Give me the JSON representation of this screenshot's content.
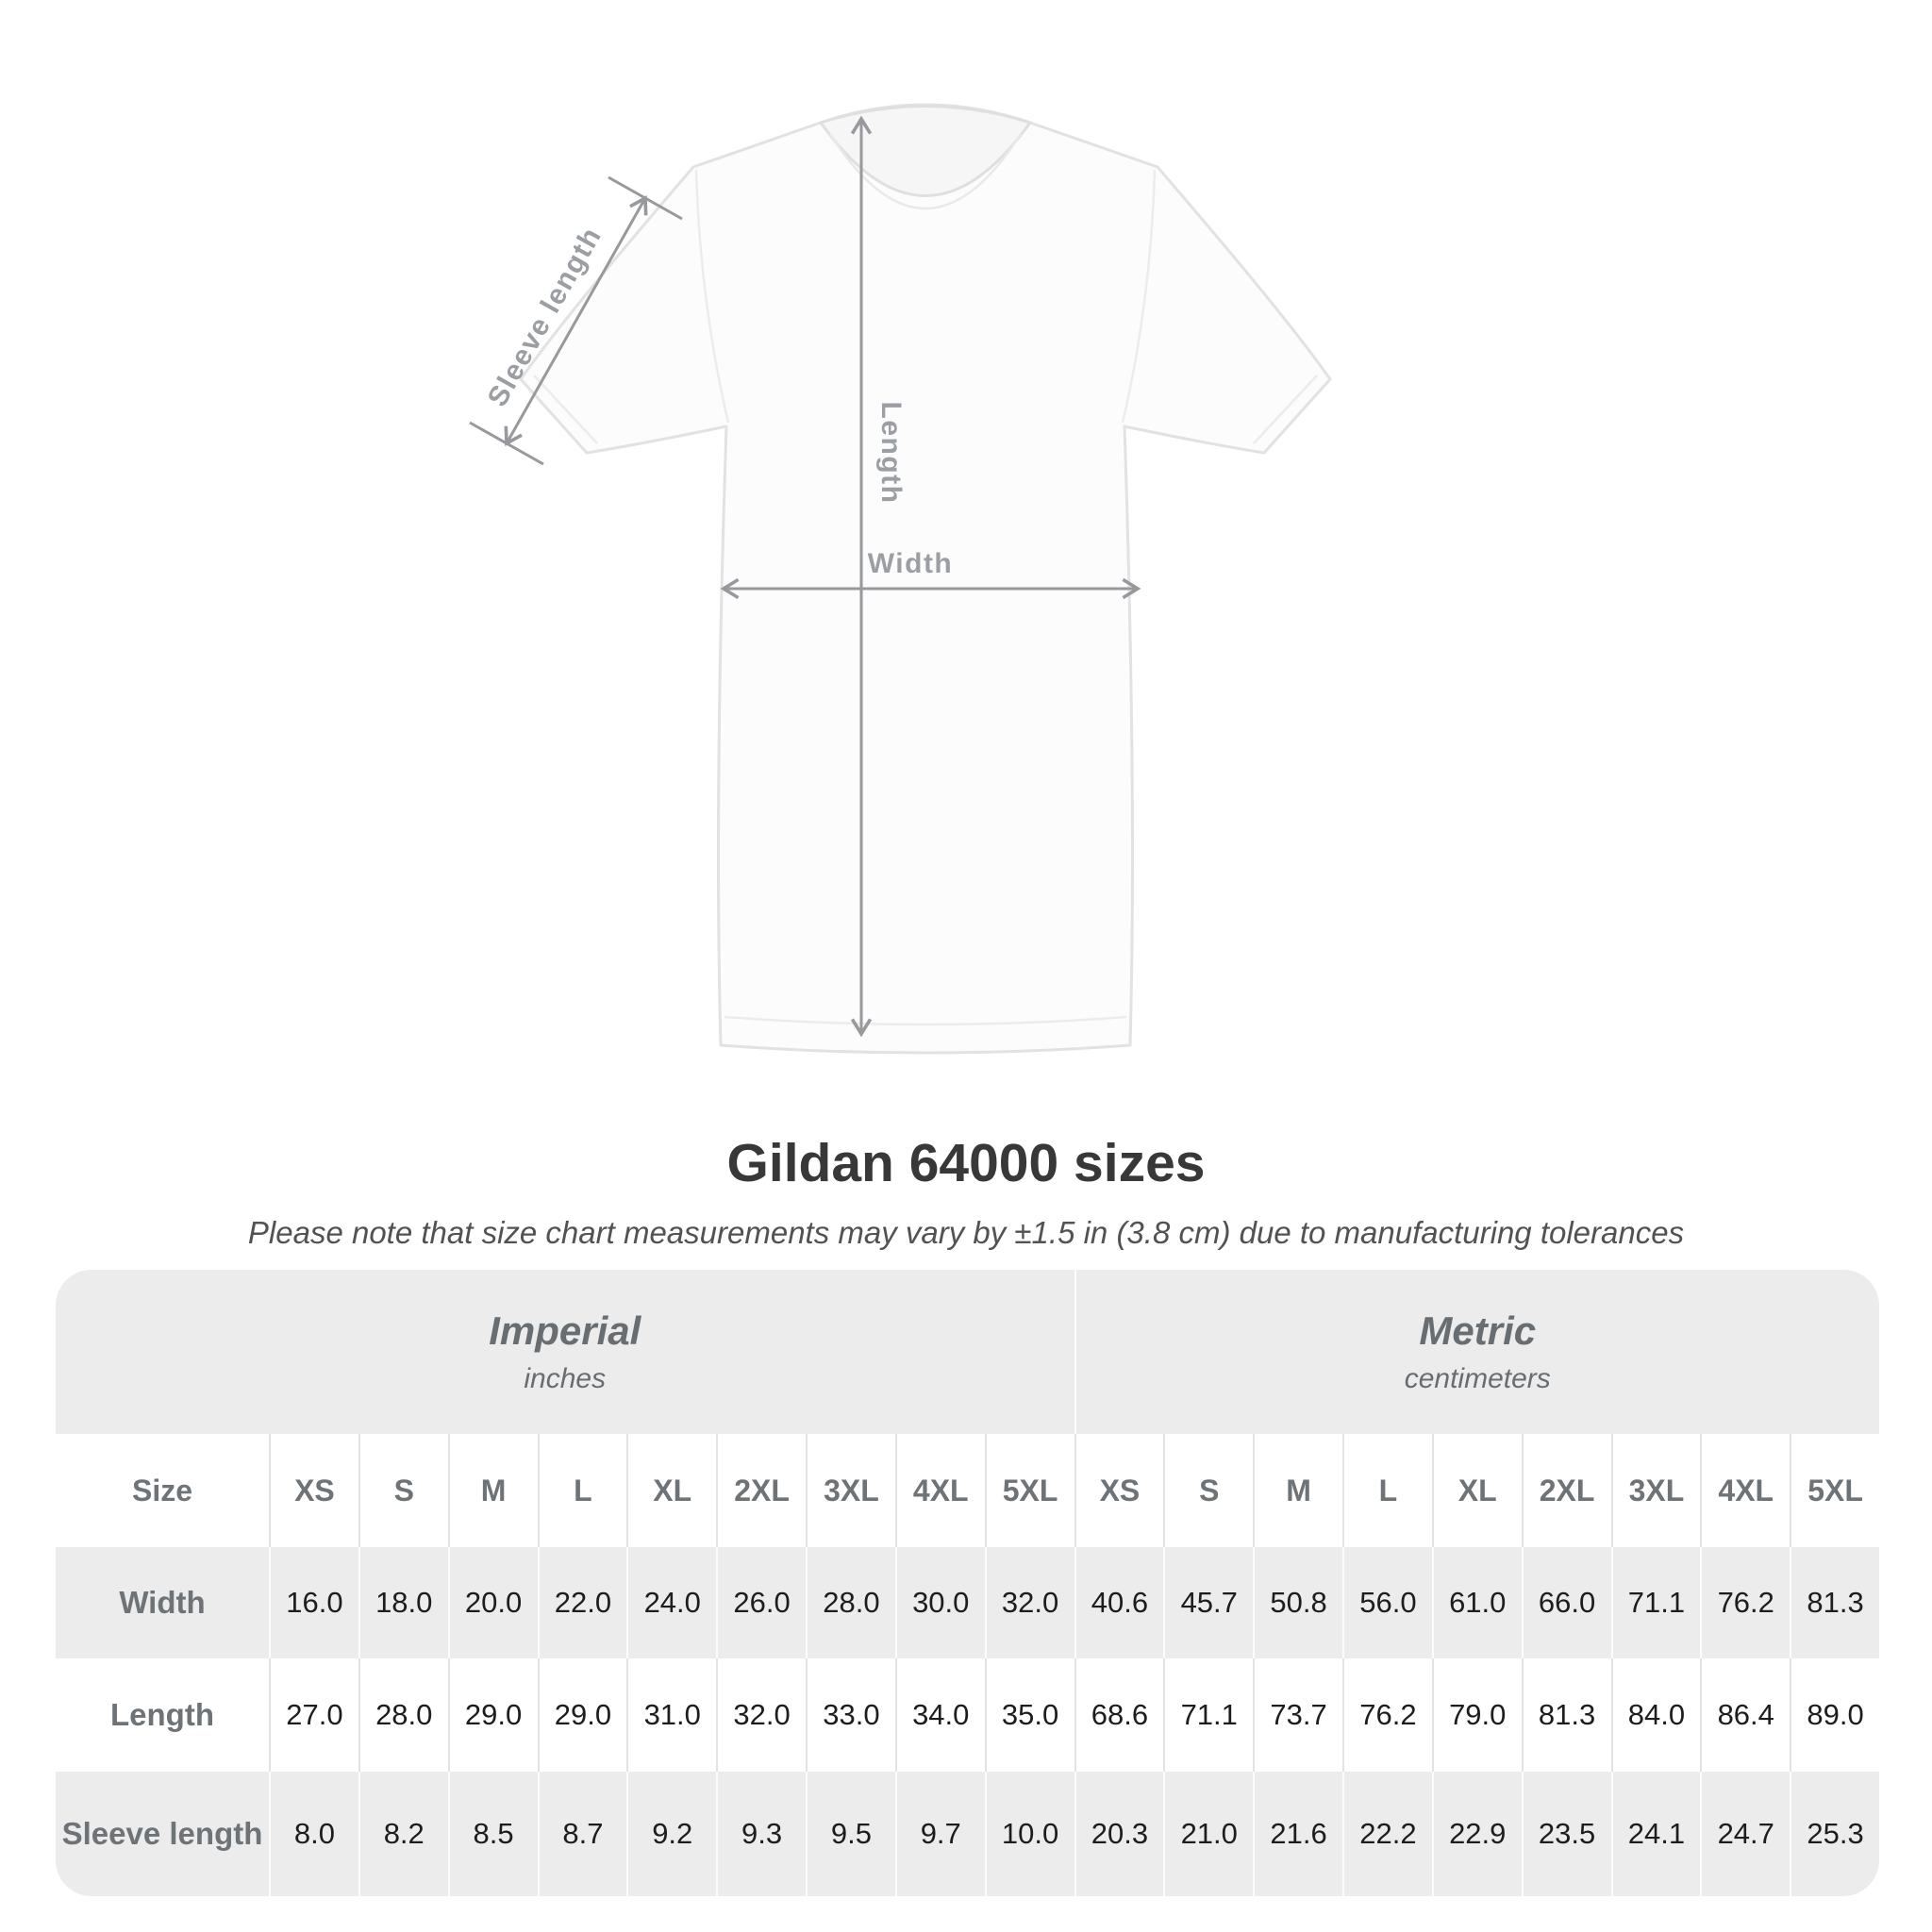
{
  "page": {
    "title": "Gildan 64000 sizes",
    "subtitle": "Please note that size chart measurements may vary by ±1.5 in (3.8 cm) due to manufacturing tolerances"
  },
  "diagram": {
    "sleeve_label": "Sleeve length",
    "length_label": "Length",
    "width_label": "Width"
  },
  "colors": {
    "annotation_gray": "#97999d",
    "table_background": "#ececec",
    "value_text": "#1d1d1d",
    "header_text": "#6e7377"
  },
  "table": {
    "size_label": "Size",
    "groups": [
      {
        "title": "Imperial",
        "unit": "inches"
      },
      {
        "title": "Metric",
        "unit": "centimeters"
      }
    ],
    "sizes": [
      "XS",
      "S",
      "M",
      "L",
      "XL",
      "2XL",
      "3XL",
      "4XL",
      "5XL"
    ],
    "rows": [
      {
        "label": "Width",
        "imperial": [
          "16.0",
          "18.0",
          "20.0",
          "22.0",
          "24.0",
          "26.0",
          "28.0",
          "30.0",
          "32.0"
        ],
        "metric": [
          "40.6",
          "45.7",
          "50.8",
          "56.0",
          "61.0",
          "66.0",
          "71.1",
          "76.2",
          "81.3"
        ]
      },
      {
        "label": "Length",
        "imperial": [
          "27.0",
          "28.0",
          "29.0",
          "29.0",
          "31.0",
          "32.0",
          "33.0",
          "34.0",
          "35.0"
        ],
        "metric": [
          "68.6",
          "71.1",
          "73.7",
          "76.2",
          "79.0",
          "81.3",
          "84.0",
          "86.4",
          "89.0"
        ]
      },
      {
        "label": "Sleeve length",
        "imperial": [
          "8.0",
          "8.2",
          "8.5",
          "8.7",
          "9.2",
          "9.3",
          "9.5",
          "9.7",
          "10.0"
        ],
        "metric": [
          "20.3",
          "21.0",
          "21.6",
          "22.2",
          "22.9",
          "23.5",
          "24.1",
          "24.7",
          "25.3"
        ]
      }
    ]
  },
  "chart_data": {
    "type": "table",
    "title": "Gildan 64000 sizes",
    "note": "Please note that size chart measurements may vary by ±1.5 in (3.8 cm) due to manufacturing tolerances",
    "column_groups": [
      "Imperial (inches)",
      "Metric (centimeters)"
    ],
    "columns": [
      "Size",
      "XS",
      "S",
      "M",
      "L",
      "XL",
      "2XL",
      "3XL",
      "4XL",
      "5XL",
      "XS",
      "S",
      "M",
      "L",
      "XL",
      "2XL",
      "3XL",
      "4XL",
      "5XL"
    ],
    "rows": [
      [
        "Width",
        16.0,
        18.0,
        20.0,
        22.0,
        24.0,
        26.0,
        28.0,
        30.0,
        32.0,
        40.6,
        45.7,
        50.8,
        56.0,
        61.0,
        66.0,
        71.1,
        76.2,
        81.3
      ],
      [
        "Length",
        27.0,
        28.0,
        29.0,
        29.0,
        31.0,
        32.0,
        33.0,
        34.0,
        35.0,
        68.6,
        71.1,
        73.7,
        76.2,
        79.0,
        81.3,
        84.0,
        86.4,
        89.0
      ],
      [
        "Sleeve length",
        8.0,
        8.2,
        8.5,
        8.7,
        9.2,
        9.3,
        9.5,
        9.7,
        10.0,
        20.3,
        21.0,
        21.6,
        22.2,
        22.9,
        23.5,
        24.1,
        24.7,
        25.3
      ]
    ]
  }
}
